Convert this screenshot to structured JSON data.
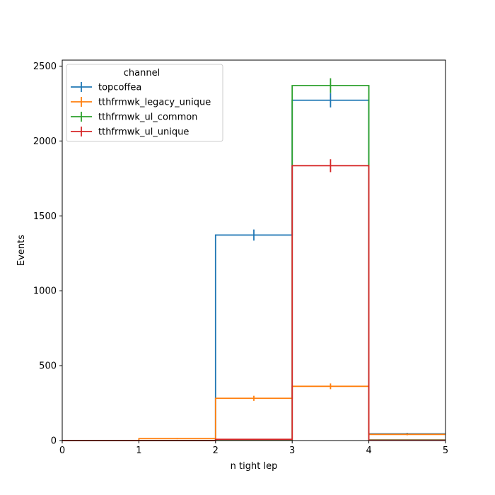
{
  "chart_data": {
    "type": "histogram",
    "xlabel": "n tight lep",
    "ylabel": "Events",
    "xlim": [
      0,
      5
    ],
    "ylim": [
      0,
      2540
    ],
    "x_ticks": [
      "0",
      "1",
      "2",
      "3",
      "4",
      "5"
    ],
    "y_ticks": [
      "0",
      "500",
      "1000",
      "1500",
      "2000",
      "2500"
    ],
    "bin_edges": [
      0,
      1,
      2,
      3,
      4,
      5
    ],
    "grid": false,
    "legend": {
      "title": "channel",
      "placement": "top-left"
    },
    "series": [
      {
        "name": "topcoffea",
        "color": "#1f77b4",
        "values": [
          0,
          0,
          1372,
          2272,
          45
        ],
        "errors": [
          0,
          0,
          37,
          48,
          7
        ]
      },
      {
        "name": "tthfrmwk_legacy_unique",
        "color": "#ff7f0e",
        "values": [
          0,
          13,
          282,
          362,
          41
        ],
        "errors": [
          0,
          4,
          17,
          19,
          6
        ]
      },
      {
        "name": "tthfrmwk_ul_common",
        "color": "#2ca02c",
        "values": [
          0,
          0,
          5,
          2370,
          4
        ],
        "errors": [
          0,
          0,
          2,
          49,
          2
        ]
      },
      {
        "name": "tthfrmwk_ul_unique",
        "color": "#d62728",
        "values": [
          0,
          0,
          8,
          1835,
          2
        ],
        "errors": [
          0,
          0,
          3,
          43,
          1
        ]
      }
    ]
  }
}
